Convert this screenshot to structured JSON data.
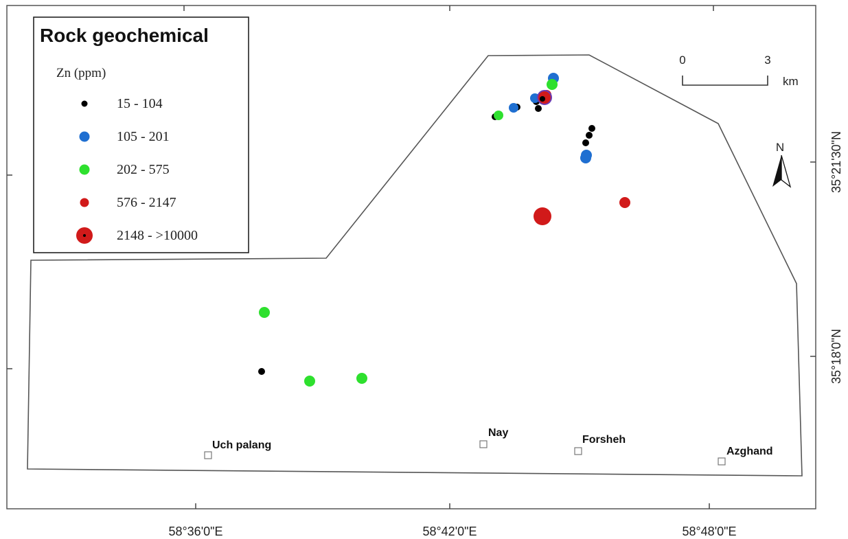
{
  "legend": {
    "title": "Rock geochemical",
    "subtitle": "Zn (ppm)",
    "classes": [
      {
        "label": "15 - 104",
        "color": "#000000"
      },
      {
        "label": "105 - 201",
        "color": "#1f6fd1"
      },
      {
        "label": "202 - 575",
        "color": "#2ee02e"
      },
      {
        "label": "576 - 2147",
        "color": "#d11a1a"
      },
      {
        "label": "2148 - >10000",
        "color": "#d11a1a"
      }
    ]
  },
  "axes": {
    "x_ticks": [
      "58°36'0\"E",
      "58°42'0\"E",
      "58°48'0\"E"
    ],
    "y_ticks": [
      "35°21'30\"N",
      "35°18'0\"N"
    ]
  },
  "scale_bar": {
    "start": "0",
    "end": "3",
    "unit": "km"
  },
  "north_arrow": {
    "label": "N",
    "icon": "north-arrow-icon"
  },
  "places": [
    "Uch palang",
    "Nay",
    "Forsheh",
    "Azghand"
  ]
}
